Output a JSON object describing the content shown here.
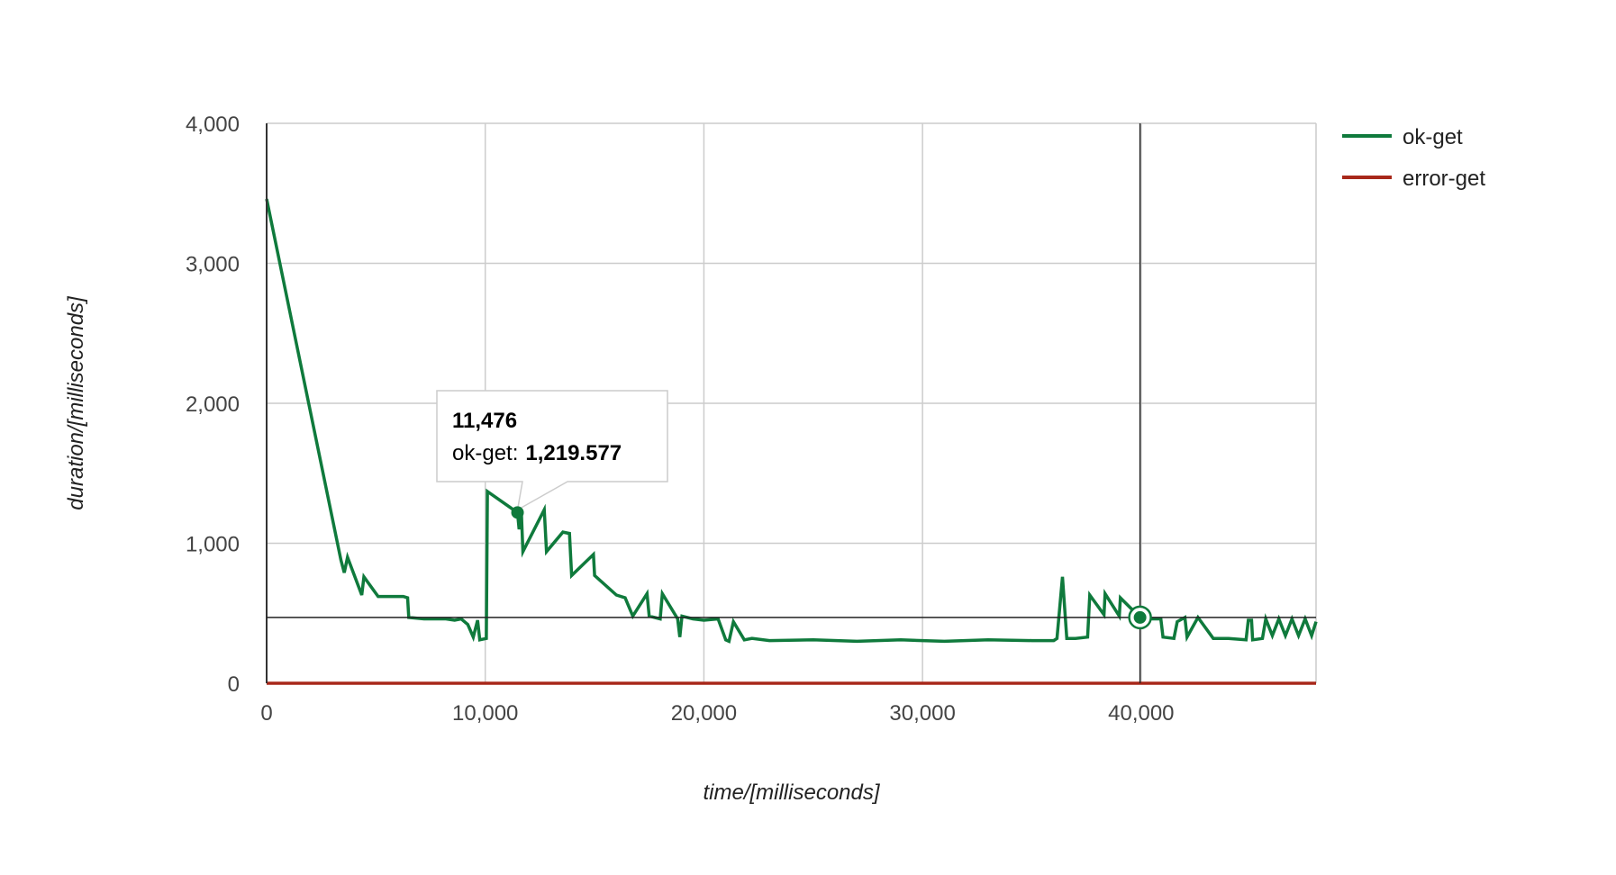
{
  "chart_data": {
    "type": "line",
    "xlabel": "time/[milliseconds]",
    "ylabel": "duration/[milliseconds]",
    "xlim": [
      0,
      48000
    ],
    "ylim": [
      0,
      4000
    ],
    "x_ticks": [
      0,
      10000,
      20000,
      30000,
      40000
    ],
    "x_tick_labels": [
      "0",
      "10,000",
      "20,000",
      "30,000",
      "40,000"
    ],
    "y_ticks": [
      0,
      1000,
      2000,
      3000,
      4000
    ],
    "y_tick_labels": [
      "0",
      "1,000",
      "2,000",
      "3,000",
      "4,000"
    ],
    "grid": true,
    "legend_position": "top-right",
    "crosshair": {
      "x": 39950,
      "y": 470
    },
    "tooltip": {
      "title": "11,476",
      "series_label": "ok-get:",
      "value": "1,219.577",
      "x": 11476,
      "y": 1219.577
    },
    "series": [
      {
        "name": "ok-get",
        "color": "#0f7a3c",
        "points": [
          [
            0,
            3460
          ],
          [
            3400,
            880
          ],
          [
            3550,
            790
          ],
          [
            3700,
            900
          ],
          [
            4350,
            630
          ],
          [
            4450,
            760
          ],
          [
            5100,
            620
          ],
          [
            5300,
            620
          ],
          [
            6250,
            620
          ],
          [
            6450,
            610
          ],
          [
            6500,
            470
          ],
          [
            7200,
            460
          ],
          [
            8200,
            460
          ],
          [
            8600,
            450
          ],
          [
            8900,
            460
          ],
          [
            9200,
            420
          ],
          [
            9450,
            330
          ],
          [
            9650,
            450
          ],
          [
            9750,
            310
          ],
          [
            10050,
            320
          ],
          [
            10100,
            1370
          ],
          [
            11476,
            1219.577
          ],
          [
            11550,
            1100
          ],
          [
            11650,
            1220
          ],
          [
            11720,
            940
          ],
          [
            12700,
            1240
          ],
          [
            12800,
            940
          ],
          [
            13550,
            1080
          ],
          [
            13850,
            1070
          ],
          [
            13950,
            770
          ],
          [
            14950,
            920
          ],
          [
            15000,
            770
          ],
          [
            16000,
            630
          ],
          [
            16400,
            610
          ],
          [
            16750,
            480
          ],
          [
            17400,
            640
          ],
          [
            17500,
            480
          ],
          [
            18000,
            460
          ],
          [
            18100,
            640
          ],
          [
            18800,
            460
          ],
          [
            18900,
            330
          ],
          [
            19000,
            480
          ],
          [
            19500,
            460
          ],
          [
            20000,
            450
          ],
          [
            20650,
            460
          ],
          [
            21000,
            310
          ],
          [
            21150,
            300
          ],
          [
            21350,
            440
          ],
          [
            21850,
            310
          ],
          [
            22200,
            320
          ],
          [
            23000,
            305
          ],
          [
            25000,
            310
          ],
          [
            27000,
            300
          ],
          [
            29000,
            310
          ],
          [
            31000,
            300
          ],
          [
            33000,
            310
          ],
          [
            35000,
            305
          ],
          [
            36000,
            305
          ],
          [
            36150,
            320
          ],
          [
            36400,
            760
          ],
          [
            36600,
            320
          ],
          [
            37000,
            320
          ],
          [
            37550,
            330
          ],
          [
            37650,
            630
          ],
          [
            38300,
            490
          ],
          [
            38350,
            640
          ],
          [
            39000,
            480
          ],
          [
            39050,
            610
          ],
          [
            39950,
            470
          ],
          [
            40500,
            460
          ],
          [
            40900,
            460
          ],
          [
            41000,
            330
          ],
          [
            41500,
            320
          ],
          [
            41650,
            440
          ],
          [
            42000,
            470
          ],
          [
            42100,
            330
          ],
          [
            42600,
            470
          ],
          [
            43300,
            320
          ],
          [
            44000,
            320
          ],
          [
            44800,
            310
          ],
          [
            44900,
            450
          ],
          [
            45050,
            450
          ],
          [
            45100,
            310
          ],
          [
            45550,
            320
          ],
          [
            45700,
            460
          ],
          [
            46000,
            340
          ],
          [
            46300,
            460
          ],
          [
            46600,
            340
          ],
          [
            46900,
            460
          ],
          [
            47200,
            340
          ],
          [
            47500,
            460
          ],
          [
            47800,
            340
          ],
          [
            48000,
            440
          ]
        ]
      },
      {
        "name": "error-get",
        "color": "#a8281a",
        "points": [
          [
            0,
            0
          ],
          [
            48000,
            0
          ]
        ]
      }
    ]
  }
}
